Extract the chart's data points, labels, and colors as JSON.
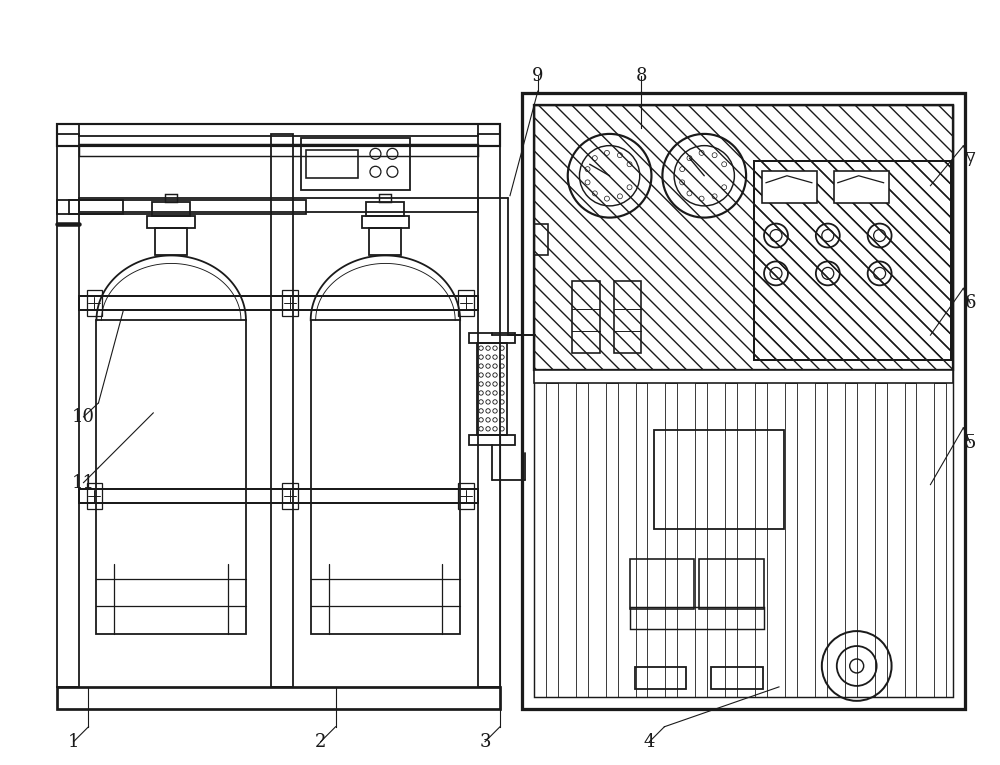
{
  "bg_color": "#ffffff",
  "line_color": "#1a1a1a",
  "lw": 1.3,
  "fig_width": 10.0,
  "fig_height": 7.65
}
